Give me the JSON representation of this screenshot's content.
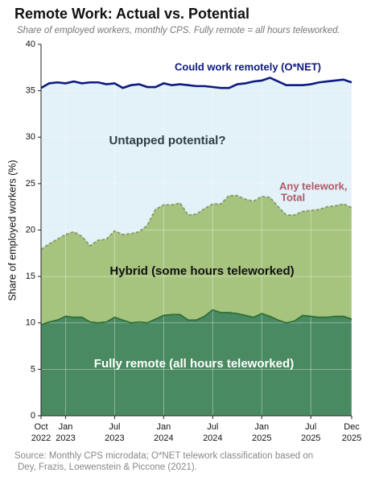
{
  "chart_data": {
    "type": "stacked_area",
    "title": "Remote Work: Actual vs. Potential",
    "subtitle": "Share of employed workers, monthly CPS. Fully remote = all hours teleworked.",
    "y_label": "Share of employed workers (%)",
    "source": [
      "Source: Monthly CPS microdata; O*NET telework classification based on",
      "Dey, Frazis, Loewenstein & Piccone (2021)."
    ],
    "annotations": {
      "untapped": "Untapped potential?",
      "total": [
        "Any telework,",
        "Total"
      ]
    },
    "categories": [
      "Oct 2022",
      null,
      null,
      "Jan 2023",
      null,
      null,
      null,
      null,
      null,
      "Jul 2023",
      null,
      null,
      null,
      null,
      null,
      "Jan 2024",
      null,
      null,
      null,
      null,
      null,
      "Jul 2024",
      null,
      null,
      null,
      null,
      null,
      "Jan 2025",
      null,
      null,
      null,
      null,
      null,
      "Jul 2025",
      null,
      null,
      null,
      null,
      "Dec 2025"
    ],
    "series": [
      {
        "name": "Fully remote (all hours teleworked)",
        "color": "#4a8a62",
        "line_color": "#2f6f35",
        "values": [
          9.8,
          10.1,
          10.3,
          10.7,
          10.6,
          10.6,
          10.1,
          10.0,
          10.1,
          10.6,
          10.3,
          10.0,
          10.1,
          10.0,
          10.4,
          10.8,
          10.9,
          10.9,
          10.3,
          10.3,
          10.7,
          11.4,
          11.1,
          11.1,
          11.0,
          10.8,
          10.6,
          11.0,
          10.7,
          10.3,
          10.0,
          10.2,
          10.8,
          10.7,
          10.6,
          10.6,
          10.7,
          10.7,
          10.4
        ]
      },
      {
        "name": "Hybrid (some hours teleworked)",
        "color": "#a7c47f",
        "line_color": "#8c9f6e",
        "values": [
          8.1,
          8.4,
          8.7,
          8.8,
          9.2,
          8.7,
          8.2,
          8.9,
          8.9,
          9.3,
          9.2,
          9.6,
          9.7,
          10.5,
          11.8,
          11.9,
          11.8,
          12.0,
          11.3,
          11.4,
          11.6,
          11.4,
          11.7,
          12.6,
          12.7,
          12.5,
          12.5,
          12.6,
          12.8,
          12.2,
          11.6,
          11.4,
          11.2,
          11.4,
          11.6,
          11.9,
          11.9,
          12.1,
          12.0
        ]
      },
      {
        "name": "Could work remotely (O*NET)",
        "color": "#0d1a80",
        "fill": "#e3f1f8",
        "kind": "line",
        "values": [
          35.3,
          35.8,
          35.9,
          35.8,
          36.0,
          35.8,
          35.9,
          35.9,
          35.7,
          35.8,
          35.3,
          35.6,
          35.7,
          35.4,
          35.4,
          35.8,
          35.6,
          35.7,
          35.6,
          35.5,
          35.5,
          35.4,
          35.3,
          35.3,
          35.7,
          35.8,
          36.0,
          36.1,
          36.4,
          36.0,
          35.6,
          35.6,
          35.6,
          35.7,
          35.9,
          36.0,
          36.1,
          36.2,
          35.9
        ]
      }
    ],
    "ylim": [
      0,
      40
    ],
    "yticks": [
      0,
      5,
      10,
      15,
      20,
      25,
      30,
      35,
      40
    ],
    "grid": true
  }
}
